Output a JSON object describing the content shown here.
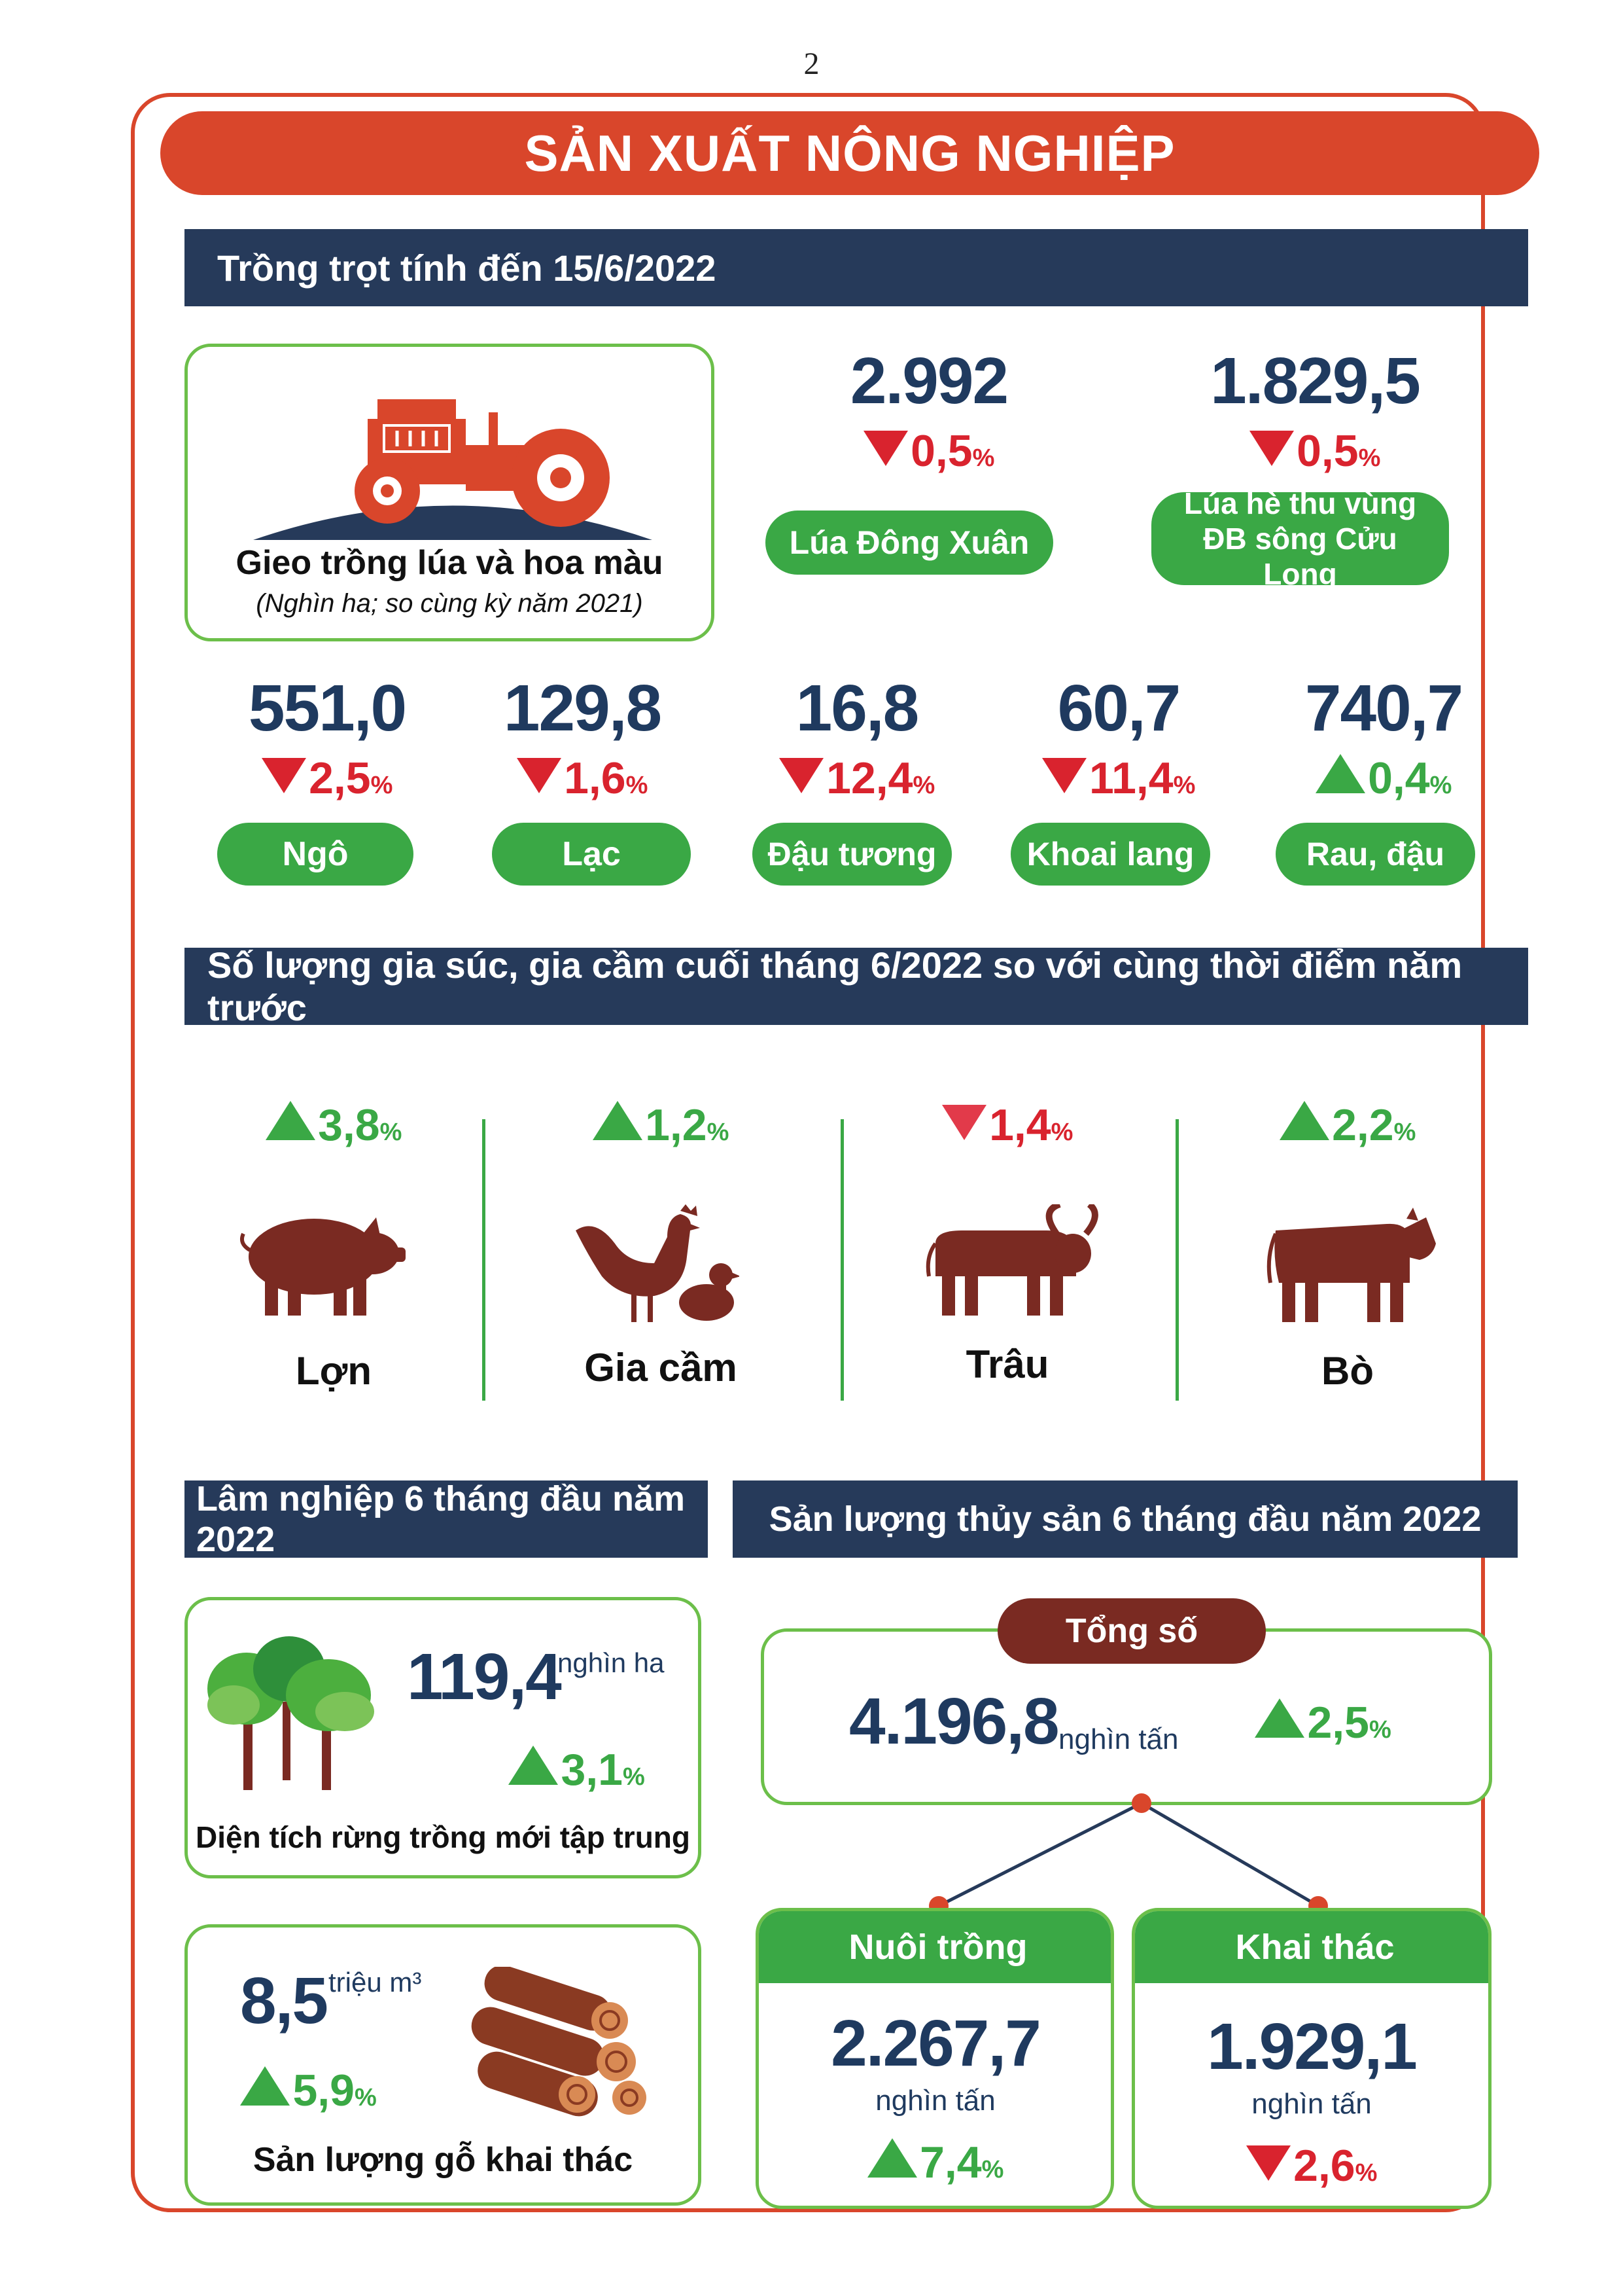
{
  "page_number": "2",
  "title": "SẢN XUẤT NÔNG NGHIỆP",
  "colors": {
    "accent_red": "#d9462b",
    "navy": "#263a5a",
    "green": "#3aa845",
    "down_red": "#d9232e",
    "brown": "#7a2a22"
  },
  "crops": {
    "header": "Trồng trọt tính đến 15/6/2022",
    "card_title": "Gieo trồng lúa và hoa màu",
    "card_subtitle": "(Nghìn ha; so cùng kỳ năm 2021)",
    "rice": [
      {
        "value": "2.992",
        "pct": "0,5",
        "dir": "down",
        "label": "Lúa Đông Xuân"
      },
      {
        "value": "1.829,5",
        "pct": "0,5",
        "dir": "down",
        "label": "Lúa hè thu vùng ĐB sông Cửu Long"
      }
    ],
    "items": [
      {
        "value": "551,0",
        "pct": "2,5",
        "dir": "down",
        "label": "Ngô"
      },
      {
        "value": "129,8",
        "pct": "1,6",
        "dir": "down",
        "label": "Lạc"
      },
      {
        "value": "16,8",
        "pct": "12,4",
        "dir": "down",
        "label": "Đậu tương"
      },
      {
        "value": "60,7",
        "pct": "11,4",
        "dir": "down",
        "label": "Khoai lang"
      },
      {
        "value": "740,7",
        "pct": "0,4",
        "dir": "up",
        "label": "Rau, đậu"
      }
    ]
  },
  "livestock": {
    "header": "Số lượng gia súc, gia cầm cuối tháng 6/2022 so với cùng thời điểm năm trước",
    "items": [
      {
        "pct": "3,8",
        "dir": "up",
        "label": "Lợn",
        "icon": "pig-icon"
      },
      {
        "pct": "1,2",
        "dir": "up",
        "label": "Gia cầm",
        "icon": "poultry-icon"
      },
      {
        "pct": "1,4",
        "dir": "down",
        "label": "Trâu",
        "icon": "buffalo-icon"
      },
      {
        "pct": "2,2",
        "dir": "up",
        "label": "Bò",
        "icon": "cow-icon"
      }
    ]
  },
  "forestry": {
    "header": "Lâm nghiệp 6 tháng đầu năm 2022",
    "planted": {
      "value": "119,4",
      "unit": "nghìn ha",
      "pct": "3,1",
      "dir": "up",
      "label": "Diện tích rừng trồng mới tập trung"
    },
    "timber": {
      "value": "8,5",
      "unit": "triệu m³",
      "pct": "5,9",
      "dir": "up",
      "label": "Sản lượng gỗ khai thác"
    }
  },
  "fishery": {
    "header": "Sản lượng thủy sản 6 tháng đầu năm 2022",
    "total": {
      "label": "Tổng số",
      "value": "4.196,8",
      "unit": "nghìn tấn",
      "pct": "2,5",
      "dir": "up"
    },
    "aquaculture": {
      "label": "Nuôi trồng",
      "value": "2.267,7",
      "unit": "nghìn tấn",
      "pct": "7,4",
      "dir": "up"
    },
    "catch": {
      "label": "Khai thác",
      "value": "1.929,1",
      "unit": "nghìn tấn",
      "pct": "2,6",
      "dir": "down"
    }
  },
  "pct_sign": "%"
}
